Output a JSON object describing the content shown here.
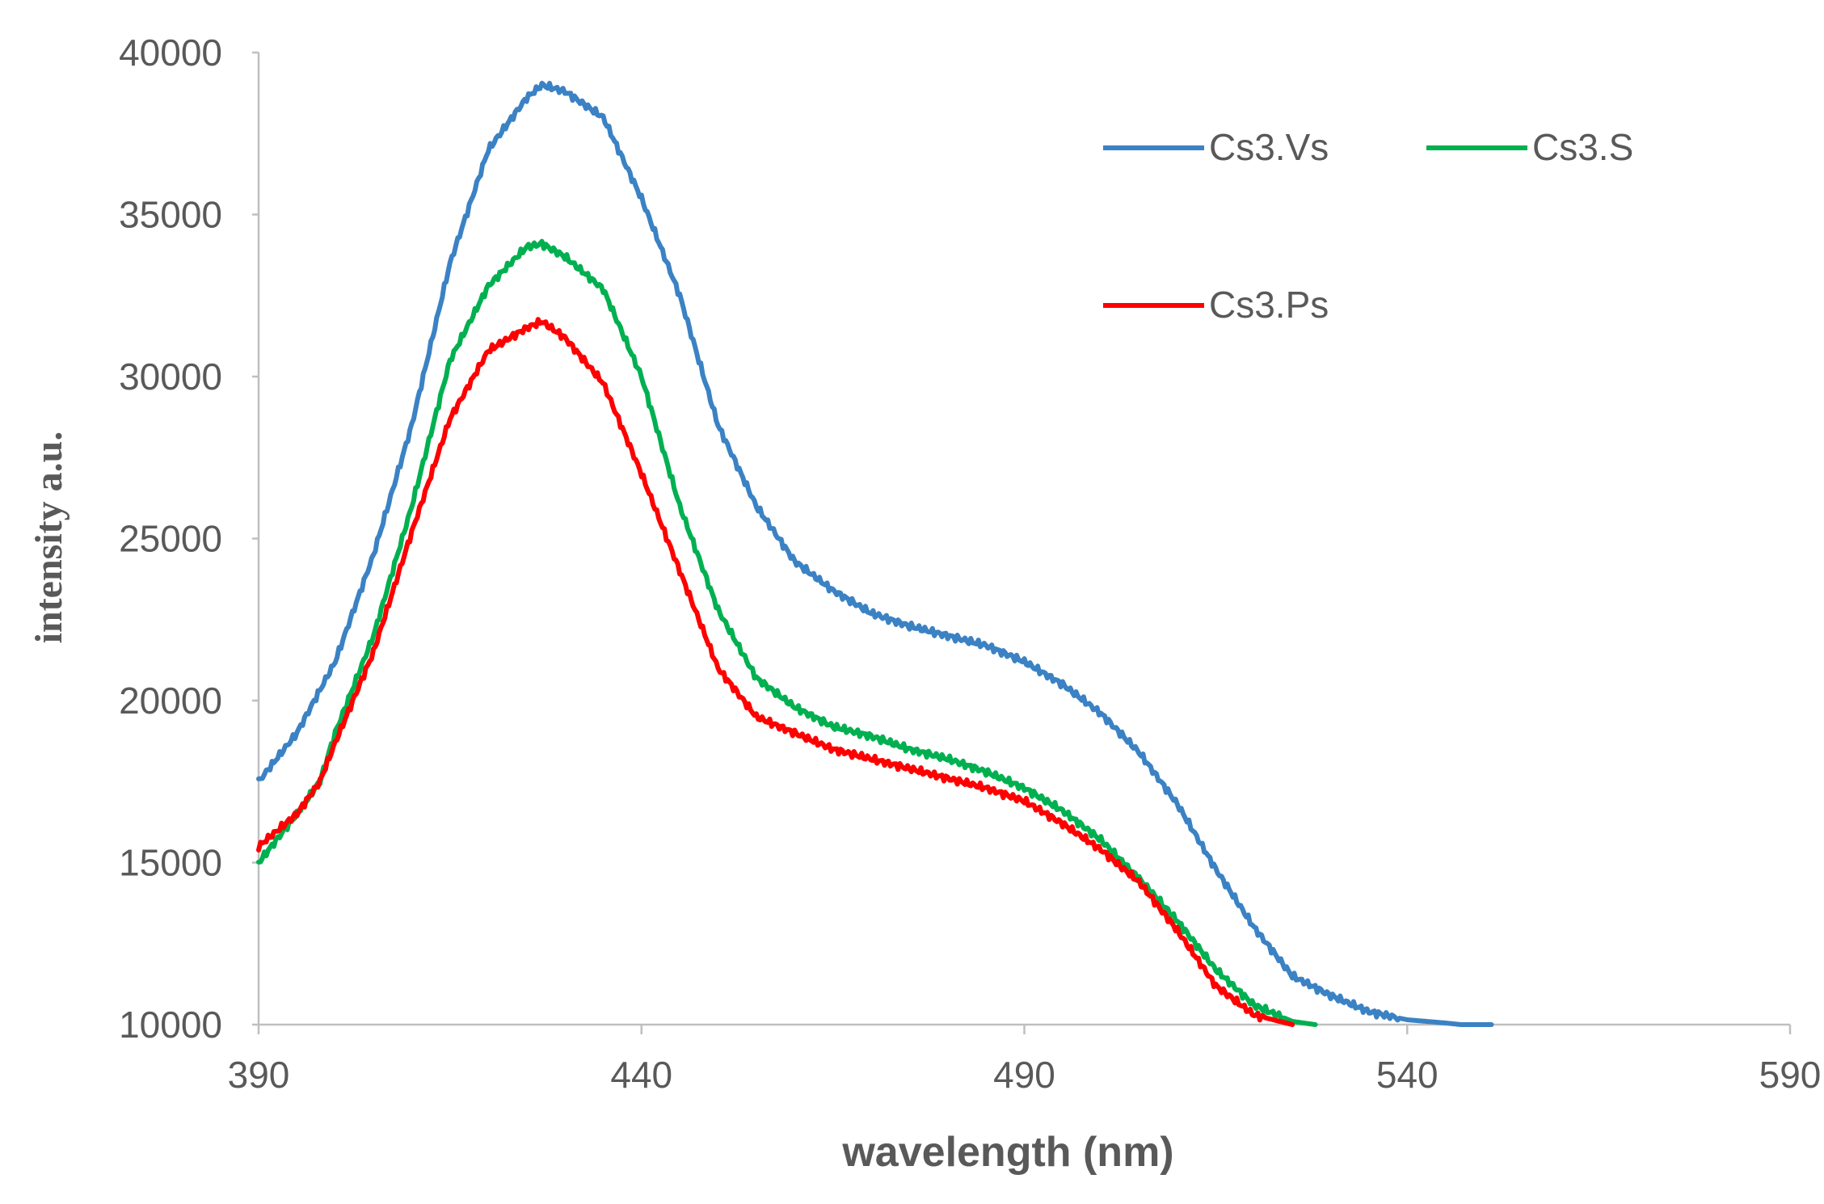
{
  "chart_data": {
    "type": "line",
    "title": "",
    "xlabel": "wavelength (nm)",
    "ylabel": "intensity a.u.",
    "xlim": [
      390,
      590
    ],
    "ylim": [
      10000,
      40000
    ],
    "x_ticks": [
      390,
      440,
      490,
      540,
      590
    ],
    "y_ticks": [
      10000,
      15000,
      20000,
      25000,
      30000,
      35000,
      40000
    ],
    "x_tick_labels": [
      "390",
      "440",
      "490",
      "540",
      "590"
    ],
    "y_tick_labels": [
      "10000",
      "15000",
      "20000",
      "25000",
      "30000",
      "35000",
      "40000"
    ],
    "grid": false,
    "legend_position": "top-right",
    "series": [
      {
        "name": "Cs3.Vs",
        "color": "#3b82c4",
        "x": [
          390,
          395,
          400,
          405,
          410,
          415,
          420,
          425,
          427,
          430,
          435,
          440,
          445,
          450,
          455,
          460,
          465,
          470,
          475,
          480,
          485,
          490,
          495,
          500,
          505,
          510,
          515,
          520,
          525,
          530,
          535,
          540,
          545,
          547,
          550,
          551
        ],
        "y": [
          17500,
          19000,
          21200,
          24500,
          28500,
          33500,
          37000,
          38600,
          39000,
          38800,
          38000,
          35500,
          32500,
          28500,
          26000,
          24300,
          23400,
          22700,
          22300,
          22000,
          21700,
          21200,
          20500,
          19600,
          18400,
          16800,
          14800,
          13000,
          11500,
          10900,
          10400,
          10150,
          10050,
          10000,
          10000,
          10000
        ]
      },
      {
        "name": "Cs3.S",
        "color": "#00b050",
        "x": [
          390,
          395,
          398,
          400,
          405,
          410,
          415,
          420,
          425,
          427,
          430,
          435,
          440,
          445,
          450,
          455,
          460,
          465,
          470,
          475,
          480,
          485,
          490,
          495,
          500,
          505,
          510,
          515,
          520,
          525,
          528
        ],
        "y": [
          15000,
          16500,
          17500,
          19000,
          22000,
          26000,
          30500,
          32800,
          34000,
          34100,
          33700,
          32700,
          30000,
          26000,
          22800,
          20700,
          19800,
          19200,
          18900,
          18500,
          18200,
          17800,
          17300,
          16600,
          15700,
          14500,
          13200,
          11700,
          10600,
          10100,
          10000
        ]
      },
      {
        "name": "Cs3.Ps",
        "color": "#ff0000",
        "x": [
          390,
          395,
          398,
          400,
          405,
          410,
          415,
          420,
          425,
          427,
          430,
          435,
          440,
          445,
          450,
          455,
          460,
          465,
          470,
          475,
          480,
          485,
          490,
          495,
          500,
          505,
          510,
          515,
          520,
          525
        ],
        "y": [
          15500,
          16500,
          17500,
          18700,
          21500,
          25200,
          28700,
          30800,
          31500,
          31700,
          31200,
          29800,
          27000,
          24000,
          21000,
          19500,
          19000,
          18500,
          18200,
          17900,
          17600,
          17300,
          16900,
          16200,
          15400,
          14400,
          12900,
          11200,
          10300,
          10000
        ]
      }
    ]
  }
}
